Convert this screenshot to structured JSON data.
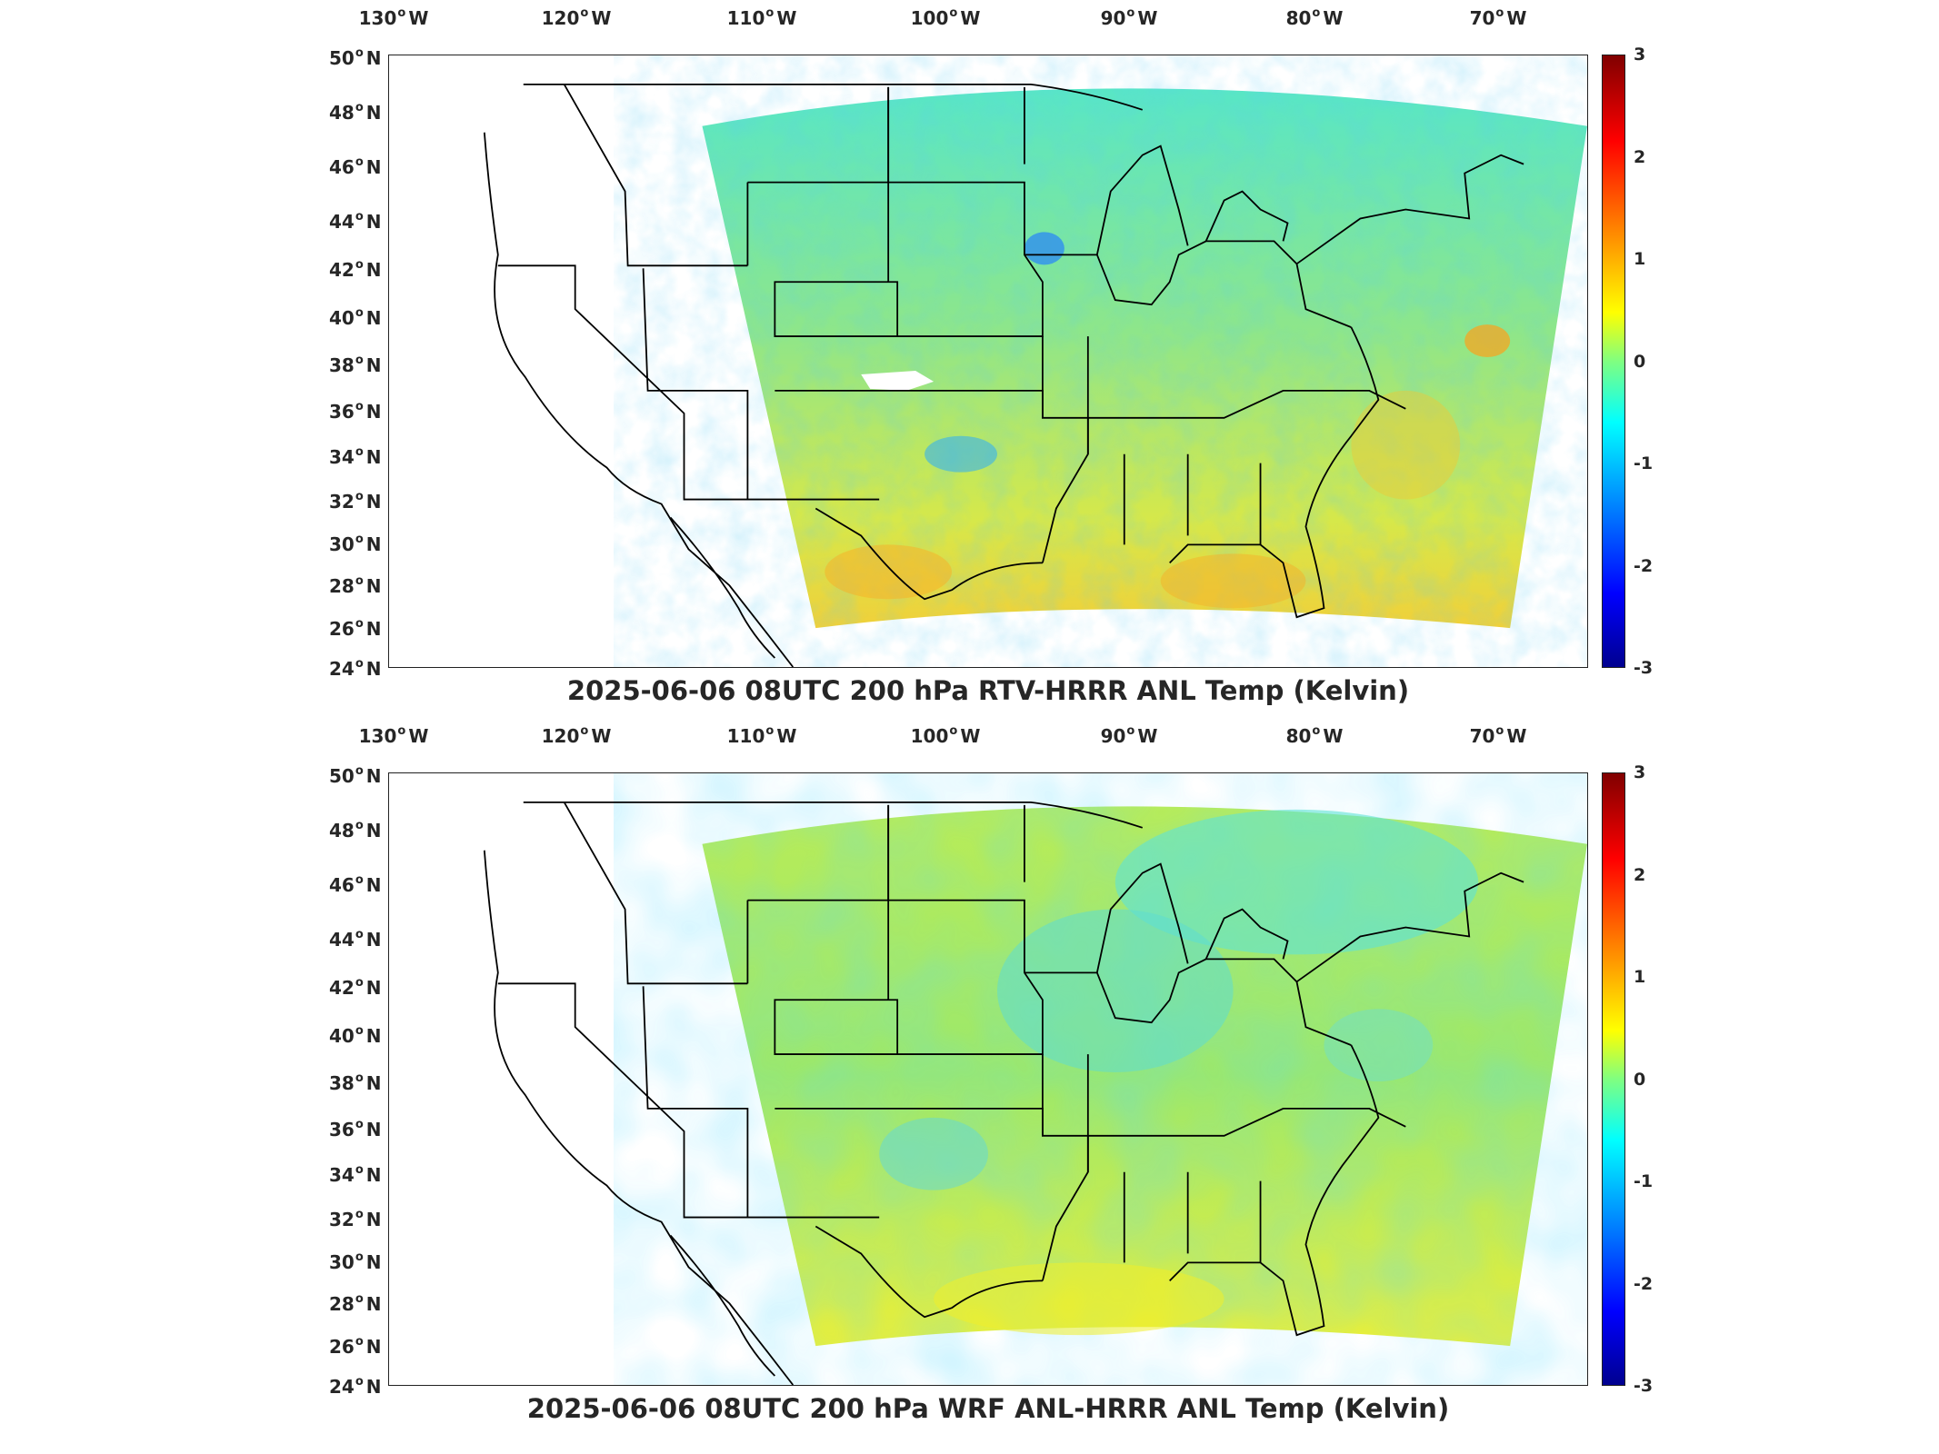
{
  "panels": [
    {
      "title": "2025-06-06 08UTC 200 hPa RTV-HRRR ANL Temp (Kelvin)",
      "lon_ticks": [
        "130",
        "120",
        "110",
        "100",
        "90",
        "80",
        "70"
      ],
      "lon_suffix": "W",
      "lat_ticks": [
        "50",
        "48",
        "46",
        "44",
        "42",
        "40",
        "38",
        "36",
        "34",
        "32",
        "30",
        "28",
        "26",
        "24"
      ],
      "lat_suffix": "N",
      "colorbar_ticks": [
        "3",
        "2",
        "1",
        "0",
        "-1",
        "-2",
        "-3"
      ]
    },
    {
      "title": "2025-06-06 08UTC 200 hPa WRF ANL-HRRR ANL Temp (Kelvin)",
      "lon_ticks": [
        "130",
        "120",
        "110",
        "100",
        "90",
        "80",
        "70"
      ],
      "lon_suffix": "W",
      "lat_ticks": [
        "50",
        "48",
        "46",
        "44",
        "42",
        "40",
        "38",
        "36",
        "34",
        "32",
        "30",
        "28",
        "26",
        "24"
      ],
      "lat_suffix": "N",
      "colorbar_ticks": [
        "3",
        "2",
        "1",
        "0",
        "-1",
        "-2",
        "-3"
      ]
    }
  ],
  "colors": {
    "field_base": "#8fe07a",
    "colormap": [
      "#00008f",
      "#0000ff",
      "#00a0ff",
      "#40ffd0",
      "#c0ff40",
      "#ffd000",
      "#ff4000",
      "#800000"
    ]
  }
}
